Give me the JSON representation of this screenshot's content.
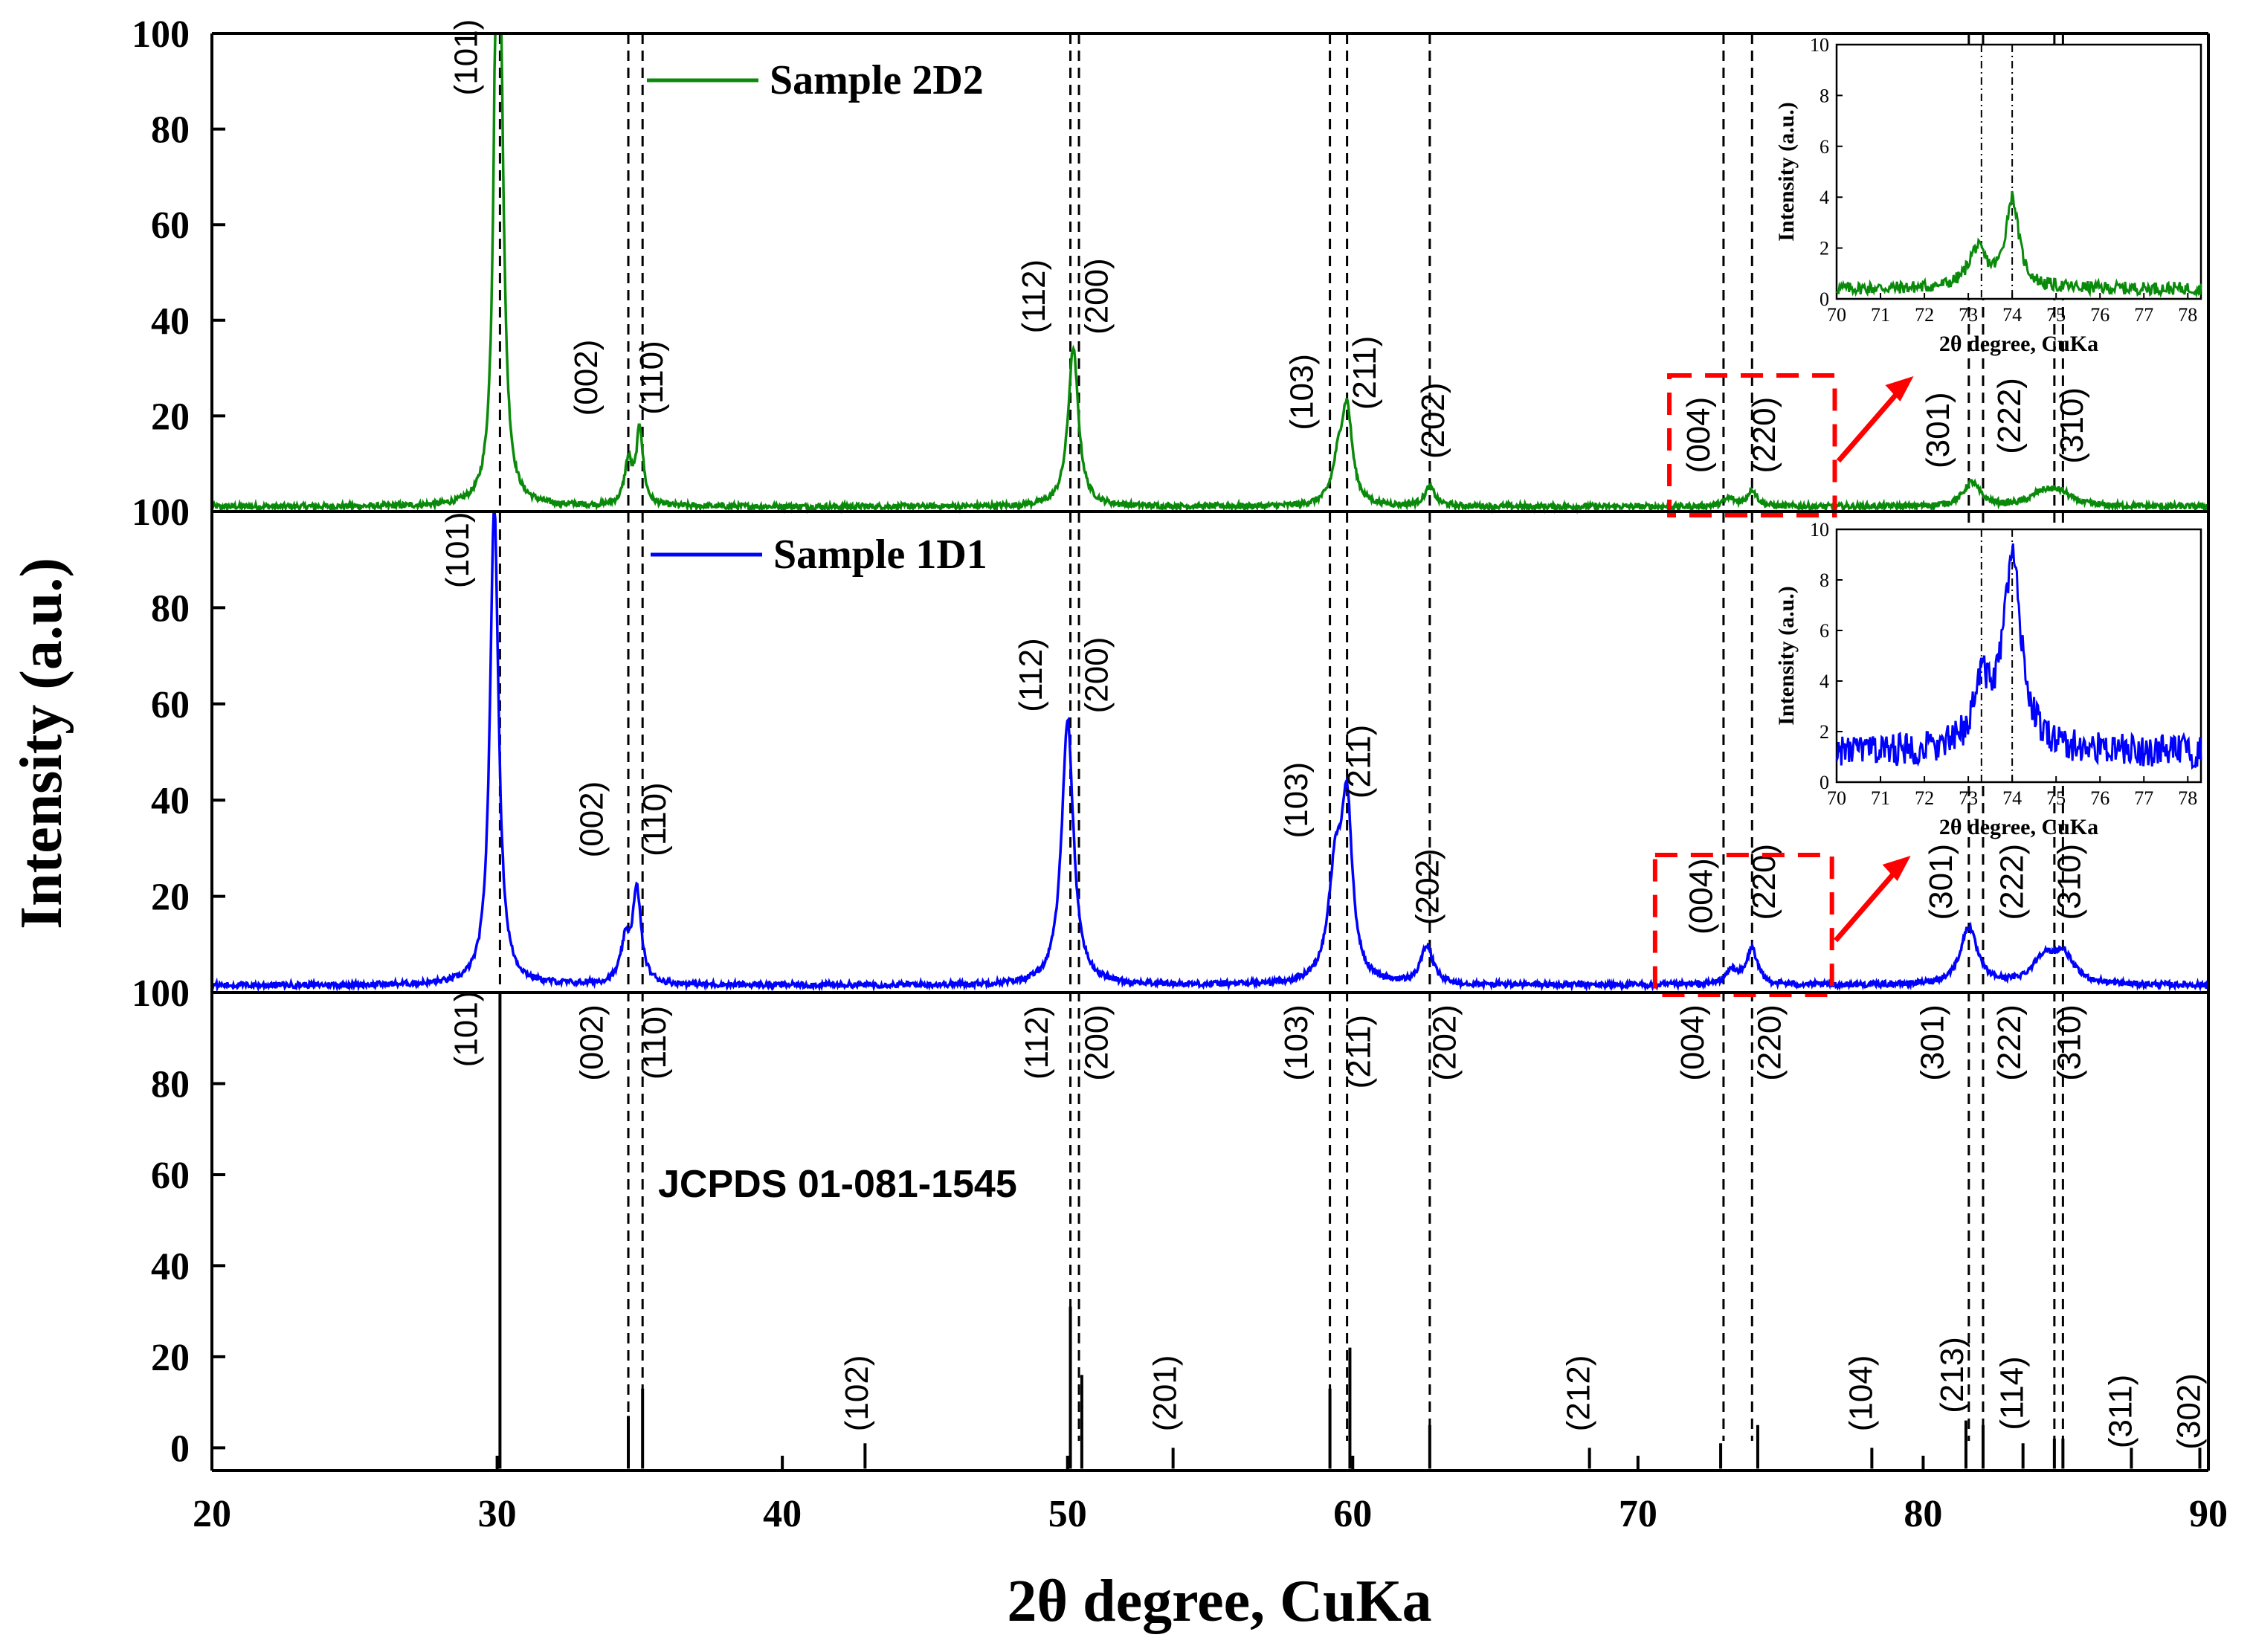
{
  "chart_data": {
    "type": "line",
    "title": "",
    "xlabel": "2θ degree, CuKa",
    "ylabel": "Intensity (a.u.)",
    "xlim": [
      20,
      90
    ],
    "x_ticks": [
      "20",
      "30",
      "40",
      "50",
      "60",
      "70",
      "80",
      "90"
    ],
    "colors": {
      "sample_2d2": "#0a8a0a",
      "sample_1d1": "#0000ff",
      "reference": "#000000",
      "highlight": "#ff0000"
    },
    "panels": [
      {
        "id": "sample_2d2",
        "legend": "Sample 2D2",
        "color": "#0a8a0a",
        "ylim": [
          0,
          100
        ],
        "y_ticks": [
          "20",
          "40",
          "60",
          "80",
          "100"
        ],
        "baseline": 1,
        "peaks": [
          {
            "x": 30.0,
            "y": 100,
            "w": 0.12
          },
          {
            "x": 30.1,
            "y": 70,
            "w": 0.16
          },
          {
            "x": 34.6,
            "y": 9,
            "w": 0.16
          },
          {
            "x": 35.0,
            "y": 16,
            "w": 0.14
          },
          {
            "x": 50.2,
            "y": 33,
            "w": 0.22
          },
          {
            "x": 59.5,
            "y": 8,
            "w": 0.25
          },
          {
            "x": 59.8,
            "y": 19,
            "w": 0.22
          },
          {
            "x": 62.7,
            "y": 4,
            "w": 0.22
          },
          {
            "x": 73.2,
            "y": 1.6,
            "w": 0.25
          },
          {
            "x": 74.0,
            "y": 3.5,
            "w": 0.2
          },
          {
            "x": 81.7,
            "y": 5,
            "w": 0.35
          },
          {
            "x": 84.2,
            "y": 2.5,
            "w": 0.5
          },
          {
            "x": 84.8,
            "y": 2.5,
            "w": 0.5
          }
        ],
        "labels": [
          {
            "x": 29.3,
            "y": 95,
            "text": "(101)"
          },
          {
            "x": 33.5,
            "y": 28,
            "text": "(002)"
          },
          {
            "x": 35.8,
            "y": 28,
            "text": "(110)"
          },
          {
            "x": 49.2,
            "y": 45,
            "text": "(112)"
          },
          {
            "x": 51.4,
            "y": 45,
            "text": "(200)"
          },
          {
            "x": 58.6,
            "y": 25,
            "text": "(103)"
          },
          {
            "x": 60.8,
            "y": 29,
            "text": "(211)"
          },
          {
            "x": 63.2,
            "y": 19,
            "text": "(202)"
          },
          {
            "x": 72.5,
            "y": 16,
            "text": "(004)"
          },
          {
            "x": 74.8,
            "y": 16,
            "text": "(220)"
          },
          {
            "x": 80.9,
            "y": 17,
            "text": "(301)"
          },
          {
            "x": 83.4,
            "y": 20,
            "text": "(222)"
          },
          {
            "x": 85.6,
            "y": 18,
            "text": "(310)"
          }
        ],
        "inset": {
          "xlabel": "2θ degree, CuKa",
          "ylabel": "Intensity (a.u.)",
          "xlim": [
            70,
            78.3
          ],
          "ylim": [
            0,
            10
          ],
          "x_ticks": [
            "70",
            "71",
            "72",
            "73",
            "74",
            "75",
            "76",
            "77",
            "78"
          ],
          "y_ticks": [
            "0",
            "2",
            "4",
            "6",
            "8",
            "10"
          ],
          "baseline": 0.4,
          "peaks": [
            {
              "x": 73.2,
              "y": 1.5,
              "w": 0.25
            },
            {
              "x": 74.0,
              "y": 3.5,
              "w": 0.18
            }
          ],
          "markers": [
            73.3,
            74.0
          ]
        }
      },
      {
        "id": "sample_1d1",
        "legend": "Sample 1D1",
        "color": "#0000ff",
        "ylim": [
          0,
          100
        ],
        "y_ticks": [
          "20",
          "40",
          "60",
          "80",
          "100"
        ],
        "baseline": 1.5,
        "peaks": [
          {
            "x": 29.9,
            "y": 100,
            "w": 0.18
          },
          {
            "x": 34.5,
            "y": 8,
            "w": 0.2
          },
          {
            "x": 34.9,
            "y": 19,
            "w": 0.18
          },
          {
            "x": 50.0,
            "y": 55,
            "w": 0.25
          },
          {
            "x": 59.4,
            "y": 23,
            "w": 0.3
          },
          {
            "x": 59.8,
            "y": 34,
            "w": 0.22
          },
          {
            "x": 62.6,
            "y": 8,
            "w": 0.25
          },
          {
            "x": 73.3,
            "y": 3,
            "w": 0.25
          },
          {
            "x": 74.0,
            "y": 7.5,
            "w": 0.22
          },
          {
            "x": 81.6,
            "y": 12,
            "w": 0.35
          },
          {
            "x": 84.2,
            "y": 5,
            "w": 0.45
          },
          {
            "x": 84.9,
            "y": 6,
            "w": 0.45
          }
        ],
        "labels": [
          {
            "x": 29.0,
            "y": 92,
            "text": "(101)"
          },
          {
            "x": 33.7,
            "y": 36,
            "text": "(002)"
          },
          {
            "x": 35.9,
            "y": 36,
            "text": "(110)"
          },
          {
            "x": 49.1,
            "y": 66,
            "text": "(112)"
          },
          {
            "x": 51.4,
            "y": 66,
            "text": "(200)"
          },
          {
            "x": 58.4,
            "y": 40,
            "text": "(103)"
          },
          {
            "x": 60.6,
            "y": 48,
            "text": "(211)"
          },
          {
            "x": 63.0,
            "y": 22,
            "text": "(202)"
          },
          {
            "x": 72.6,
            "y": 20,
            "text": "(004)"
          },
          {
            "x": 74.8,
            "y": 23,
            "text": "(220)"
          },
          {
            "x": 81.0,
            "y": 23,
            "text": "(301)"
          },
          {
            "x": 83.5,
            "y": 23,
            "text": "(222)"
          },
          {
            "x": 85.5,
            "y": 23,
            "text": "(310)"
          }
        ],
        "inset": {
          "xlabel": "2θ degree, CuKa",
          "ylabel": "Intensity (a.u.)",
          "xlim": [
            70,
            78.3
          ],
          "ylim": [
            0,
            10
          ],
          "x_ticks": [
            "70",
            "71",
            "72",
            "73",
            "74",
            "75",
            "76",
            "77",
            "78"
          ],
          "y_ticks": [
            "0",
            "2",
            "4",
            "6",
            "8",
            "10"
          ],
          "baseline": 1.2,
          "peaks": [
            {
              "x": 73.3,
              "y": 2.5,
              "w": 0.22
            },
            {
              "x": 74.0,
              "y": 7.5,
              "w": 0.25
            }
          ],
          "markers": [
            73.3,
            74.0
          ]
        }
      },
      {
        "id": "reference",
        "legend": "JCPDS 01-081-1545",
        "color": "#000000",
        "ylim": [
          -5,
          100
        ],
        "y_ticks": [
          "0",
          "20",
          "40",
          "60",
          "80",
          "100"
        ],
        "sticks": [
          {
            "x": 30.1,
            "y": 100
          },
          {
            "x": 34.6,
            "y": 7
          },
          {
            "x": 35.1,
            "y": 13
          },
          {
            "x": 42.9,
            "y": 1
          },
          {
            "x": 50.1,
            "y": 31
          },
          {
            "x": 50.5,
            "y": 16
          },
          {
            "x": 53.7,
            "y": 0
          },
          {
            "x": 59.2,
            "y": 13
          },
          {
            "x": 59.9,
            "y": 22
          },
          {
            "x": 62.7,
            "y": 5
          },
          {
            "x": 68.3,
            "y": 0
          },
          {
            "x": 72.9,
            "y": 1
          },
          {
            "x": 74.2,
            "y": 5
          },
          {
            "x": 78.2,
            "y": 0
          },
          {
            "x": 81.5,
            "y": 6
          },
          {
            "x": 82.1,
            "y": 5
          },
          {
            "x": 83.5,
            "y": 1
          },
          {
            "x": 84.6,
            "y": 2
          },
          {
            "x": 84.9,
            "y": 2
          },
          {
            "x": 87.3,
            "y": 0
          },
          {
            "x": 89.7,
            "y": 0
          }
        ],
        "labels": [
          {
            "x": 29.3,
            "y": 92,
            "text": "(101)"
          },
          {
            "x": 33.7,
            "y": 89,
            "text": "(002)"
          },
          {
            "x": 35.9,
            "y": 89,
            "text": "(110)"
          },
          {
            "x": 49.3,
            "y": 89,
            "text": "(112)"
          },
          {
            "x": 51.4,
            "y": 89,
            "text": "(200)"
          },
          {
            "x": 58.4,
            "y": 89,
            "text": "(103)"
          },
          {
            "x": 60.6,
            "y": 87,
            "text": "(211)"
          },
          {
            "x": 63.6,
            "y": 89,
            "text": "(202)"
          },
          {
            "x": 72.3,
            "y": 89,
            "text": "(004)"
          },
          {
            "x": 75.0,
            "y": 89,
            "text": "(220)"
          },
          {
            "x": 80.7,
            "y": 89,
            "text": "(301)"
          },
          {
            "x": 83.4,
            "y": 89,
            "text": "(222)"
          },
          {
            "x": 85.5,
            "y": 89,
            "text": "(310)"
          },
          {
            "x": 43.0,
            "y": 12,
            "text": "(102)"
          },
          {
            "x": 53.8,
            "y": 12,
            "text": "(201)"
          },
          {
            "x": 68.3,
            "y": 12,
            "text": "(212)"
          },
          {
            "x": 78.2,
            "y": 12,
            "text": "(104)"
          },
          {
            "x": 81.4,
            "y": 16,
            "text": "(213)"
          },
          {
            "x": 83.5,
            "y": 12,
            "text": "(114)"
          },
          {
            "x": 87.3,
            "y": 8,
            "text": "(311)"
          },
          {
            "x": 89.7,
            "y": 8,
            "text": "(302)"
          }
        ]
      }
    ],
    "guide_lines": [
      30.1,
      34.6,
      35.1,
      50.1,
      50.4,
      59.2,
      59.8,
      62.7,
      73.0,
      74.0,
      81.6,
      82.1,
      84.6,
      84.9
    ]
  }
}
